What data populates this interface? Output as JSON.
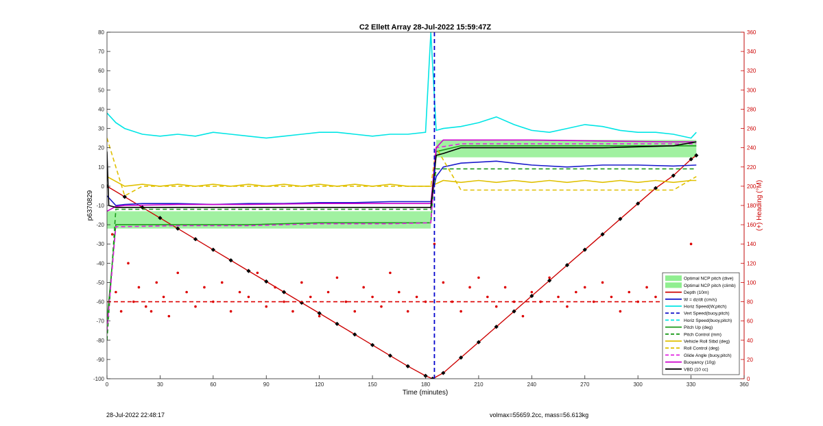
{
  "chart_data": {
    "type": "line",
    "title": "C2 Ellett Array 28-Jul-2022 15:59:47Z",
    "xlabel": "Time (minutes)",
    "ylabel": "p6370829",
    "y2label": "(+) Heading (°M)",
    "xlim": [
      0,
      360
    ],
    "ylim": [
      -100,
      80
    ],
    "y2lim": [
      0,
      360
    ],
    "xticks": [
      0,
      30,
      60,
      90,
      120,
      150,
      180,
      210,
      240,
      270,
      300,
      330,
      360
    ],
    "yticks": [
      -100,
      -90,
      -80,
      -70,
      -60,
      -50,
      -40,
      -30,
      -20,
      -10,
      0,
      10,
      20,
      30,
      40,
      50,
      60,
      70,
      80
    ],
    "y2ticks": [
      0,
      20,
      40,
      60,
      80,
      100,
      120,
      140,
      160,
      180,
      200,
      220,
      240,
      260,
      280,
      300,
      320,
      340,
      360
    ],
    "grid": false,
    "legend_position": "bottom-right",
    "colors": {
      "depth": "#cc0000",
      "heading": "#dd0000",
      "w": "#1a1acc",
      "hspeed": "#00e5e5",
      "pitch": "#1a9a1a",
      "roll": "#e0c000",
      "glide": "#e020e0",
      "buoy": "#cc00cc",
      "vbd": "#000000",
      "ncp": "#90ee90",
      "right_axis": "#cc0000"
    },
    "series": [
      {
        "key": "depth",
        "name": "Depth (10m)",
        "style": "solid-marker",
        "x": [
          0,
          10,
          20,
          30,
          40,
          50,
          60,
          70,
          80,
          90,
          100,
          110,
          120,
          130,
          140,
          150,
          160,
          170,
          180,
          184,
          190,
          200,
          210,
          220,
          230,
          240,
          250,
          260,
          270,
          280,
          290,
          300,
          310,
          320,
          330,
          333
        ],
        "y": [
          0,
          -5.5,
          -11,
          -16.5,
          -22,
          -27.5,
          -33,
          -38.5,
          -44,
          -49.5,
          -55,
          -60.5,
          -66,
          -71.5,
          -77,
          -82.5,
          -88,
          -93.5,
          -98.5,
          -100,
          -97,
          -89,
          -81,
          -73,
          -65,
          -57,
          -49,
          -41,
          -33,
          -25,
          -17,
          -9,
          -1,
          5.5,
          14,
          16
        ]
      },
      {
        "key": "w",
        "name": "W = dz/dt (cm/s)",
        "style": "solid",
        "x": [
          0,
          5,
          10,
          20,
          40,
          60,
          80,
          100,
          120,
          140,
          160,
          180,
          183,
          186,
          190,
          200,
          220,
          240,
          260,
          280,
          300,
          320,
          333
        ],
        "y": [
          -5,
          -10,
          -9.5,
          -9,
          -9,
          -9.5,
          -9,
          -9,
          -8.5,
          -8.5,
          -8,
          -8,
          -8,
          5,
          10,
          12,
          13,
          11,
          10,
          11,
          11,
          10.5,
          11
        ]
      },
      {
        "key": "hspeed",
        "name": "Horiz Speed(W,pitch)",
        "style": "solid",
        "x": [
          0,
          5,
          10,
          20,
          30,
          40,
          50,
          60,
          70,
          80,
          90,
          100,
          110,
          120,
          130,
          140,
          150,
          160,
          170,
          180,
          183,
          186,
          190,
          200,
          210,
          220,
          230,
          240,
          250,
          260,
          270,
          280,
          290,
          300,
          310,
          320,
          330,
          333
        ],
        "y": [
          38,
          33,
          30,
          27,
          26,
          27,
          26,
          28,
          27,
          26,
          25,
          26,
          27,
          28,
          28,
          27,
          26,
          27,
          27,
          28,
          80,
          29,
          30,
          31,
          33,
          36,
          32,
          29,
          28,
          30,
          32,
          31,
          29,
          28,
          28,
          27,
          25,
          28
        ]
      },
      {
        "key": "pitch",
        "name": "Pitch Up (deg)",
        "style": "solid",
        "x": [
          0,
          5,
          10,
          40,
          80,
          120,
          160,
          180,
          183,
          186,
          200,
          240,
          280,
          320,
          333
        ],
        "y": [
          -70,
          -20,
          -20,
          -20,
          -20,
          -19,
          -19,
          -19,
          -19,
          18,
          21,
          21,
          21,
          21,
          21
        ]
      },
      {
        "key": "pitch_ctrl",
        "name": "Pitch Control (mm)",
        "style": "dashed",
        "x": [
          0,
          5,
          10,
          40,
          80,
          120,
          160,
          183,
          186,
          200,
          240,
          280,
          320,
          333
        ],
        "y": [
          -80,
          -12,
          -12,
          -12,
          -12,
          -12,
          -12,
          -12,
          9,
          9,
          9,
          9,
          9,
          9
        ]
      },
      {
        "key": "roll",
        "name": "Vehicle Roll Stbd (deg)",
        "style": "solid",
        "x": [
          0,
          10,
          20,
          30,
          40,
          50,
          60,
          70,
          80,
          90,
          100,
          110,
          120,
          130,
          140,
          150,
          160,
          170,
          180,
          183,
          190,
          200,
          210,
          220,
          230,
          240,
          250,
          260,
          270,
          280,
          290,
          300,
          310,
          320,
          330,
          333
        ],
        "y": [
          5,
          0,
          1,
          0,
          1,
          0,
          1,
          0,
          1,
          0,
          1,
          0,
          1,
          0,
          1,
          0,
          1,
          0,
          0,
          0,
          3,
          2,
          3,
          2,
          3,
          2,
          3,
          2,
          3,
          2,
          3,
          2,
          3,
          2,
          3,
          3
        ]
      },
      {
        "key": "roll_ctrl",
        "name": "Roll Control (deg)",
        "style": "dashed",
        "x": [
          0,
          10,
          20,
          40,
          60,
          80,
          100,
          120,
          140,
          160,
          180,
          183,
          186,
          200,
          220,
          240,
          260,
          280,
          300,
          320,
          333
        ],
        "y": [
          25,
          -5,
          0,
          0,
          0,
          0,
          0,
          0,
          0,
          0,
          0,
          0,
          20,
          -2,
          -2,
          -2,
          -2,
          -2,
          -2,
          -2,
          5
        ]
      },
      {
        "key": "glide",
        "name": "Glide Angle (buoy,pitch)",
        "style": "dashed",
        "x": [
          0,
          5,
          10,
          40,
          80,
          120,
          160,
          183,
          186,
          200,
          240,
          280,
          320,
          333
        ],
        "y": [
          -75,
          -21,
          -21,
          -20.5,
          -20.5,
          -19.5,
          -19.5,
          -19,
          20,
          22,
          22,
          22,
          22,
          22
        ]
      },
      {
        "key": "buoy",
        "name": "Buoyancy (10g)",
        "style": "solid",
        "x": [
          0,
          5,
          10,
          40,
          80,
          120,
          160,
          183,
          186,
          190,
          200,
          240,
          280,
          320,
          333
        ],
        "y": [
          -13,
          -10.5,
          -10,
          -9.5,
          -9.5,
          -9,
          -9,
          -9,
          20,
          24,
          24,
          24,
          23.5,
          23,
          23
        ]
      },
      {
        "key": "vbd",
        "name": "VBD (10 cc)",
        "style": "solid",
        "x": [
          0,
          1,
          5,
          40,
          80,
          120,
          160,
          183,
          186,
          190,
          200,
          240,
          280,
          320,
          333
        ],
        "y": [
          18,
          -10,
          -11,
          -11,
          -11,
          -11,
          -11,
          -11,
          16,
          17,
          20,
          20,
          20,
          21,
          23
        ]
      },
      {
        "key": "heading",
        "name": "Heading",
        "axis": "right",
        "style": "dots",
        "x": [
          3,
          5,
          8,
          12,
          15,
          18,
          22,
          25,
          28,
          32,
          35,
          40,
          45,
          50,
          55,
          60,
          65,
          70,
          75,
          80,
          85,
          90,
          95,
          100,
          105,
          110,
          115,
          120,
          125,
          130,
          135,
          140,
          145,
          150,
          155,
          160,
          165,
          170,
          175,
          180,
          185,
          190,
          195,
          200,
          205,
          210,
          215,
          220,
          225,
          230,
          235,
          240,
          245,
          250,
          255,
          260,
          265,
          270,
          275,
          280,
          285,
          290,
          295,
          300,
          305,
          310,
          315,
          320,
          325,
          330
        ],
        "y": [
          150,
          90,
          70,
          120,
          80,
          95,
          75,
          70,
          100,
          85,
          65,
          110,
          90,
          75,
          95,
          80,
          100,
          70,
          90,
          85,
          110,
          75,
          95,
          80,
          70,
          100,
          85,
          65,
          90,
          105,
          80,
          70,
          95,
          85,
          75,
          110,
          90,
          70,
          85,
          80,
          140,
          100,
          80,
          70,
          95,
          105,
          85,
          75,
          95,
          80,
          65,
          90,
          80,
          105,
          85,
          75,
          90,
          95,
          80,
          100,
          85,
          70,
          90,
          80,
          95,
          85,
          75,
          90,
          85,
          140
        ]
      },
      {
        "key": "heading_target",
        "name": "Heading target",
        "axis": "right",
        "style": "dashed",
        "x": [
          0,
          333
        ],
        "y": [
          80,
          80
        ]
      }
    ],
    "vertical_markers": [
      {
        "key": "apogee",
        "name": "Vert Speed(buoy,pitch)",
        "x": 185,
        "style": "dashed",
        "color": "#0000cc"
      }
    ],
    "bands": [
      {
        "key": "ncp_dive",
        "name": "Optimal NCP pitch (dive)",
        "x": [
          0,
          183
        ],
        "y": [
          -22,
          -13
        ]
      },
      {
        "key": "ncp_climb",
        "name": "Optimal NCP pitch (climb)",
        "x": [
          186,
          333
        ],
        "y": [
          15,
          24
        ]
      }
    ],
    "legend": [
      {
        "label": "Optimal NCP pitch (dive)",
        "kind": "patch",
        "color": "#90ee90"
      },
      {
        "label": "Optimal NCP pitch (climb)",
        "kind": "patch",
        "color": "#90ee90"
      },
      {
        "label": "Depth (10m)",
        "kind": "line",
        "color": "#cc0000",
        "dash": "solid"
      },
      {
        "label": "W = dz/dt (cm/s)",
        "kind": "line",
        "color": "#1a1acc",
        "dash": "solid"
      },
      {
        "label": "Horiz Speed(W,pitch)",
        "kind": "line",
        "color": "#00e5e5",
        "dash": "solid"
      },
      {
        "label": "Vert Speed(buoy,pitch)",
        "kind": "line",
        "color": "#1a1acc",
        "dash": "dashed"
      },
      {
        "label": "Horiz Speed(buoy,pitch)",
        "kind": "line",
        "color": "#00e5e5",
        "dash": "dashed"
      },
      {
        "label": "Pitch Up (deg)",
        "kind": "line",
        "color": "#1a9a1a",
        "dash": "solid"
      },
      {
        "label": "Pitch Control (mm)",
        "kind": "line",
        "color": "#1a9a1a",
        "dash": "dashed"
      },
      {
        "label": "Vehicle Roll Stbd (deg)",
        "kind": "line",
        "color": "#e0c000",
        "dash": "solid"
      },
      {
        "label": "Roll Control (deg)",
        "kind": "line",
        "color": "#e0c000",
        "dash": "dashed"
      },
      {
        "label": "Glide Angle (buoy,pitch)",
        "kind": "line",
        "color": "#e020e0",
        "dash": "dashed"
      },
      {
        "label": "Buoyancy (10g)",
        "kind": "line",
        "color": "#cc00cc",
        "dash": "solid"
      },
      {
        "label": "VBD (10 cc)",
        "kind": "line",
        "color": "#000000",
        "dash": "solid"
      }
    ]
  },
  "footer": {
    "timestamp": "28-Jul-2022 22:48:17",
    "volmax": "volmax=55659.2cc, mass=56.613kg"
  }
}
